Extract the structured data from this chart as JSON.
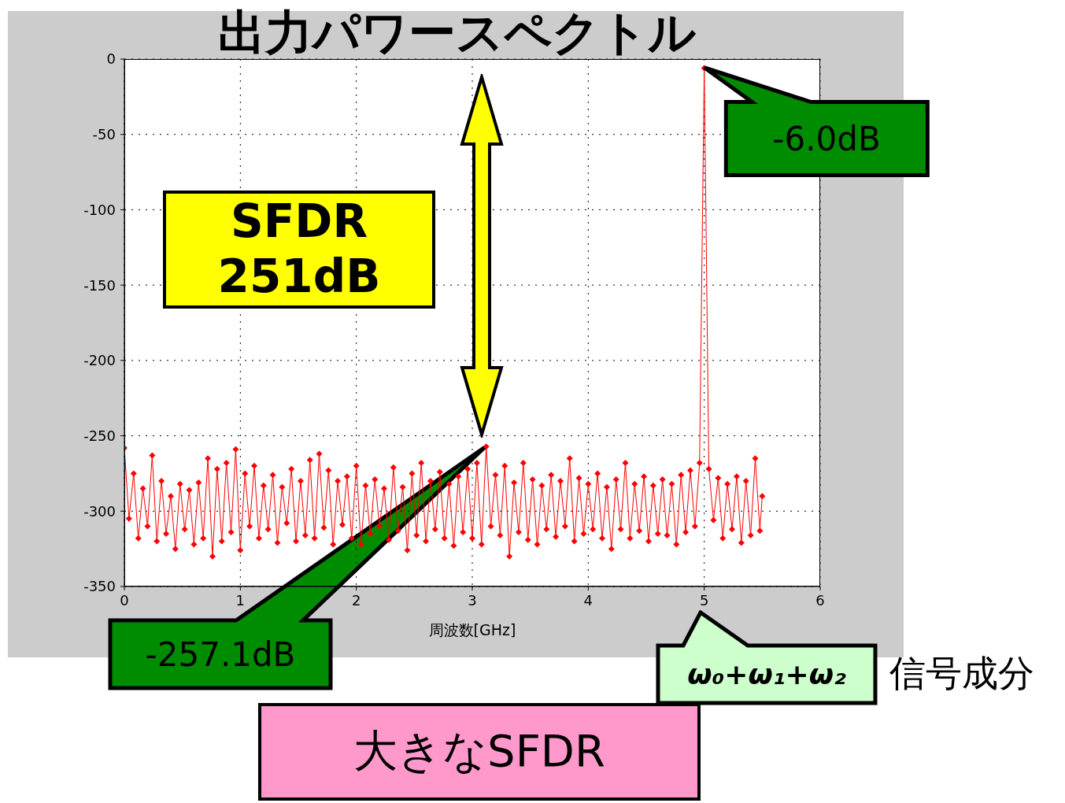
{
  "chart_data": {
    "type": "line",
    "title": "出力パワースペクトル",
    "xlabel": "周波数[GHz]",
    "xlim": [
      0,
      6
    ],
    "xticks": [
      0,
      1,
      2,
      3,
      4,
      5,
      6
    ],
    "ylim": [
      -350,
      0
    ],
    "yticks": [
      -350,
      -300,
      -250,
      -200,
      -150,
      -100,
      -50,
      0
    ],
    "grid": true,
    "marker": "diamond",
    "line_style": "solid",
    "x": [
      0,
      0.04,
      0.08,
      0.12,
      0.16,
      0.2,
      0.24,
      0.28,
      0.32,
      0.36,
      0.4,
      0.44,
      0.48,
      0.52,
      0.56,
      0.6,
      0.64,
      0.68,
      0.72,
      0.76,
      0.8,
      0.84,
      0.88,
      0.92,
      0.96,
      1.0,
      1.04,
      1.08,
      1.12,
      1.16,
      1.2,
      1.24,
      1.28,
      1.32,
      1.36,
      1.4,
      1.44,
      1.48,
      1.52,
      1.56,
      1.6,
      1.64,
      1.68,
      1.72,
      1.76,
      1.8,
      1.84,
      1.88,
      1.92,
      1.96,
      2.0,
      2.04,
      2.08,
      2.12,
      2.16,
      2.2,
      2.24,
      2.28,
      2.32,
      2.36,
      2.4,
      2.44,
      2.48,
      2.52,
      2.56,
      2.6,
      2.64,
      2.68,
      2.72,
      2.76,
      2.8,
      2.84,
      2.88,
      2.92,
      2.96,
      3.0,
      3.04,
      3.08,
      3.12,
      3.16,
      3.2,
      3.24,
      3.28,
      3.32,
      3.36,
      3.4,
      3.44,
      3.48,
      3.52,
      3.56,
      3.6,
      3.64,
      3.68,
      3.72,
      3.76,
      3.8,
      3.84,
      3.88,
      3.92,
      3.96,
      4.0,
      4.04,
      4.08,
      4.12,
      4.16,
      4.2,
      4.24,
      4.28,
      4.32,
      4.36,
      4.4,
      4.44,
      4.48,
      4.52,
      4.56,
      4.6,
      4.64,
      4.68,
      4.72,
      4.76,
      4.8,
      4.84,
      4.88,
      4.92,
      4.96,
      5.0,
      5.04,
      5.08,
      5.12,
      5.16,
      5.2,
      5.24,
      5.28,
      5.32,
      5.36,
      5.4,
      5.44,
      5.48,
      5.5
    ],
    "series": [
      {
        "color": "#ff0000",
        "values": [
          -258,
          -305,
          -275,
          -318,
          -285,
          -310,
          -263,
          -320,
          -280,
          -315,
          -290,
          -325,
          -282,
          -312,
          -286,
          -322,
          -281,
          -318,
          -265,
          -330,
          -272,
          -320,
          -268,
          -314,
          -259,
          -326,
          -275,
          -310,
          -270,
          -318,
          -283,
          -312,
          -276,
          -321,
          -284,
          -308,
          -272,
          -320,
          -280,
          -316,
          -266,
          -318,
          -262,
          -311,
          -273,
          -322,
          -280,
          -309,
          -277,
          -318,
          -270,
          -322,
          -283,
          -315,
          -279,
          -310,
          -285,
          -319,
          -271,
          -313,
          -284,
          -326,
          -275,
          -316,
          -268,
          -320,
          -280,
          -312,
          -274,
          -318,
          -282,
          -323,
          -277,
          -314,
          -272,
          -318,
          -268,
          -322,
          -257.1,
          -310,
          -276,
          -316,
          -270,
          -330,
          -281,
          -314,
          -268,
          -319,
          -279,
          -322,
          -283,
          -312,
          -276,
          -317,
          -280,
          -310,
          -265,
          -320,
          -278,
          -315,
          -282,
          -312,
          -275,
          -318,
          -284,
          -325,
          -279,
          -312,
          -268,
          -318,
          -282,
          -313,
          -277,
          -320,
          -283,
          -315,
          -279,
          -316,
          -282,
          -322,
          -276,
          -314,
          -273,
          -310,
          -268,
          -6,
          -272,
          -306,
          -278,
          -318,
          -282,
          -312,
          -277,
          -321,
          -280,
          -316,
          -265,
          -313,
          -290
        ]
      }
    ],
    "annotations": [
      {
        "text": "-6.0dB",
        "x": 5,
        "y": -6
      },
      "-257.1dB",
      "SFDR 251dB",
      "ω₀+ω₁+ω₂",
      "信号成分",
      "大きなSFDR"
    ]
  }
}
